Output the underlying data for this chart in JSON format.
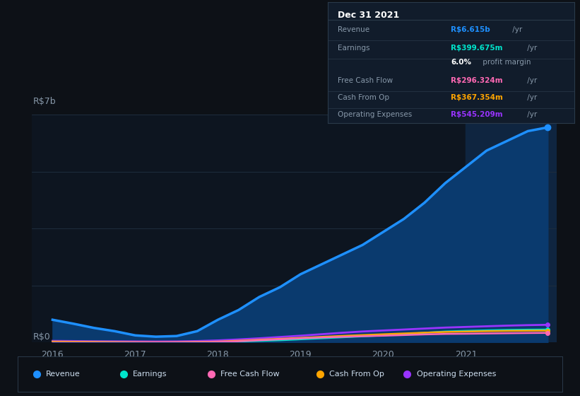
{
  "background_color": "#0d1117",
  "plot_bg_color": "#0d1520",
  "grid_color": "#1e2d3d",
  "ylabel": "R$7b",
  "y0label": "R$0",
  "ylim": [
    0,
    7000000000
  ],
  "yticks": [
    0,
    1750000000,
    3500000000,
    5250000000,
    7000000000
  ],
  "x_years": [
    2016.0,
    2016.25,
    2016.5,
    2016.75,
    2017.0,
    2017.25,
    2017.5,
    2017.75,
    2018.0,
    2018.25,
    2018.5,
    2018.75,
    2019.0,
    2019.25,
    2019.5,
    2019.75,
    2020.0,
    2020.25,
    2020.5,
    2020.75,
    2021.0,
    2021.25,
    2021.5,
    2021.75,
    2021.99
  ],
  "revenue": [
    700000000,
    580000000,
    450000000,
    350000000,
    220000000,
    180000000,
    200000000,
    350000000,
    700000000,
    1000000000,
    1400000000,
    1700000000,
    2100000000,
    2400000000,
    2700000000,
    3000000000,
    3400000000,
    3800000000,
    4300000000,
    4900000000,
    5400000000,
    5900000000,
    6200000000,
    6500000000,
    6615000000
  ],
  "earnings": [
    20000000,
    15000000,
    12000000,
    8000000,
    5000000,
    3000000,
    4000000,
    8000000,
    15000000,
    30000000,
    50000000,
    70000000,
    100000000,
    130000000,
    160000000,
    190000000,
    220000000,
    260000000,
    300000000,
    340000000,
    360000000,
    375000000,
    388000000,
    396000000,
    399675000
  ],
  "free_cash_flow": [
    0,
    0,
    0,
    0,
    2000000,
    2000000,
    5000000,
    10000000,
    20000000,
    40000000,
    70000000,
    100000000,
    130000000,
    155000000,
    175000000,
    195000000,
    210000000,
    230000000,
    250000000,
    265000000,
    270000000,
    278000000,
    285000000,
    292000000,
    296324000
  ],
  "cash_from_op": [
    30000000,
    25000000,
    20000000,
    15000000,
    12000000,
    10000000,
    12000000,
    18000000,
    30000000,
    55000000,
    85000000,
    115000000,
    145000000,
    175000000,
    205000000,
    230000000,
    255000000,
    280000000,
    305000000,
    325000000,
    338000000,
    350000000,
    358000000,
    364000000,
    367354000
  ],
  "operating_expenses": [
    50000000,
    45000000,
    40000000,
    38000000,
    35000000,
    32000000,
    35000000,
    45000000,
    65000000,
    95000000,
    130000000,
    170000000,
    210000000,
    255000000,
    300000000,
    340000000,
    370000000,
    400000000,
    430000000,
    460000000,
    480000000,
    500000000,
    520000000,
    535000000,
    545209000
  ],
  "revenue_color": "#1e90ff",
  "earnings_color": "#00e5cc",
  "fcf_color": "#ff69b4",
  "cashop_color": "#ffa500",
  "opex_color": "#9933ff",
  "fill_revenue_color": "#0a3a6e",
  "shade_color": "#0f2540",
  "box_bg": "#111c2b",
  "box_border": "#2a3a4a",
  "legend_items": [
    {
      "label": "Revenue",
      "color": "#1e90ff"
    },
    {
      "label": "Earnings",
      "color": "#00e5cc"
    },
    {
      "label": "Free Cash Flow",
      "color": "#ff69b4"
    },
    {
      "label": "Cash From Op",
      "color": "#ffa500"
    },
    {
      "label": "Operating Expenses",
      "color": "#9933ff"
    }
  ],
  "info_box": {
    "date": "Dec 31 2021",
    "rows": [
      {
        "label": "Revenue",
        "value": "R$6.615b",
        "unit": " /yr",
        "value_color": "#1e90ff"
      },
      {
        "label": "Earnings",
        "value": "R$399.675m",
        "unit": " /yr",
        "value_color": "#00e5cc"
      },
      {
        "label": "",
        "value": "6.0%",
        "unit": " profit margin",
        "value_color": "#ffffff"
      },
      {
        "label": "Free Cash Flow",
        "value": "R$296.324m",
        "unit": " /yr",
        "value_color": "#ff69b4"
      },
      {
        "label": "Cash From Op",
        "value": "R$367.354m",
        "unit": " /yr",
        "value_color": "#ffa500"
      },
      {
        "label": "Operating Expenses",
        "value": "R$545.209m",
        "unit": " /yr",
        "value_color": "#9933ff"
      }
    ]
  }
}
